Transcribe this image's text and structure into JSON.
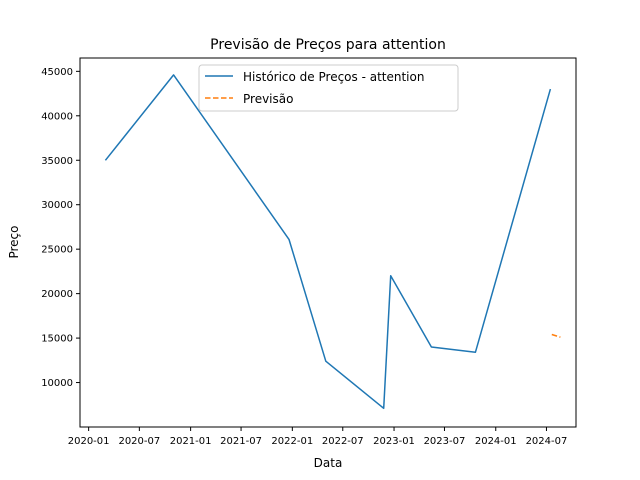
{
  "chart_data": {
    "type": "line",
    "title": "Previsão de Preços para attention",
    "xlabel": "Data",
    "ylabel": "Preço",
    "xlim": [
      "2019-12-01",
      "2024-10-15"
    ],
    "ylim": [
      5000,
      46500
    ],
    "x_ticks": [
      {
        "date": "2020-01-01",
        "label": "2020-01"
      },
      {
        "date": "2020-07-01",
        "label": "2020-07"
      },
      {
        "date": "2021-01-01",
        "label": "2021-01"
      },
      {
        "date": "2021-07-01",
        "label": "2021-07"
      },
      {
        "date": "2022-01-01",
        "label": "2022-01"
      },
      {
        "date": "2022-07-01",
        "label": "2022-07"
      },
      {
        "date": "2023-01-01",
        "label": "2023-01"
      },
      {
        "date": "2023-07-01",
        "label": "2023-07"
      },
      {
        "date": "2024-01-01",
        "label": "2024-01"
      },
      {
        "date": "2024-07-01",
        "label": "2024-07"
      }
    ],
    "y_ticks": [
      10000,
      15000,
      20000,
      25000,
      30000,
      35000,
      40000,
      45000
    ],
    "grid": false,
    "legend_position": "top-center",
    "series": [
      {
        "name": "Histórico de Preços - attention",
        "color": "#1f77b4",
        "style": "solid",
        "points": [
          {
            "x": "2020-03-01",
            "y": 35000
          },
          {
            "x": "2020-11-01",
            "y": 44600
          },
          {
            "x": "2021-12-20",
            "y": 26100
          },
          {
            "x": "2022-05-01",
            "y": 12400
          },
          {
            "x": "2022-11-25",
            "y": 7100
          },
          {
            "x": "2022-12-20",
            "y": 22000
          },
          {
            "x": "2023-05-15",
            "y": 14000
          },
          {
            "x": "2023-10-20",
            "y": 13400
          },
          {
            "x": "2024-07-15",
            "y": 43000
          }
        ]
      },
      {
        "name": "Previsão",
        "color": "#ff7f0e",
        "style": "dashed",
        "points": [
          {
            "x": "2024-07-20",
            "y": 15400
          },
          {
            "x": "2024-08-20",
            "y": 15100
          }
        ]
      }
    ]
  }
}
